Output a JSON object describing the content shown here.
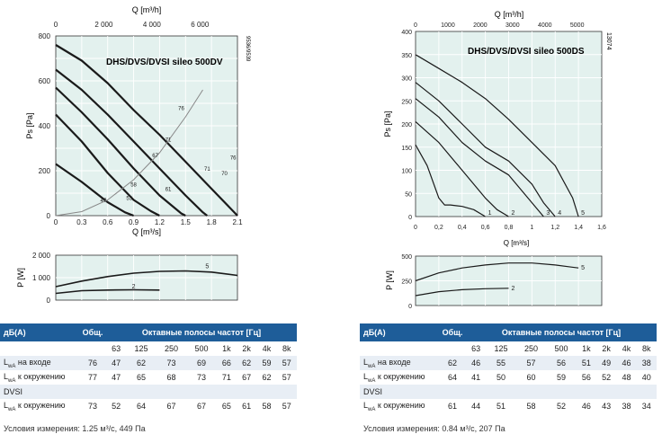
{
  "left": {
    "model_label": "DHS/DVS/DVSI sileo 500DV",
    "side_code": "9536/9539",
    "top_axis_label": "Q [m³/h]",
    "top_ticks": [
      "0",
      "2 000",
      "4 000",
      "6 000"
    ],
    "bottom_axis_label": "Q [m³/s]",
    "bottom_ticks": [
      "0",
      "0.3",
      "0.6",
      "0.9",
      "1.2",
      "1.5",
      "1.8",
      "2.1"
    ],
    "y_axis_label": "Ps [Pa]",
    "y_ticks": [
      "0",
      "200",
      "400",
      "600",
      "800"
    ],
    "power_y_label": "P [W]",
    "power_y_ticks": [
      "0",
      "1 000",
      "2 000"
    ]
  },
  "right": {
    "model_label": "DHS/DVS/DVSI sileo 500DS",
    "side_code": "13074",
    "top_axis_label": "Q [m³/h]",
    "top_ticks": [
      "0",
      "1000",
      "2000",
      "3000",
      "4000",
      "5000"
    ],
    "bottom_axis_label": "Q [m³/s]",
    "bottom_ticks": [
      "0",
      "0,2",
      "0,4",
      "0,6",
      "0,8",
      "1",
      "1,2",
      "1,4",
      "1,6"
    ],
    "y_axis_label": "Ps [Pa]",
    "y_ticks": [
      "0",
      "50",
      "100",
      "150",
      "200",
      "250",
      "300",
      "350",
      "400"
    ],
    "power_y_label": "P [W]",
    "power_y_ticks": [
      "0",
      "250",
      "500"
    ]
  },
  "chart_data": [
    {
      "type": "line",
      "id": "left-pressure",
      "title": "DHS/DVS/DVSI sileo 500DV",
      "xlabel": "Q [m³/s]",
      "ylabel": "Ps [Pa]",
      "xlim": [
        0,
        2.1
      ],
      "ylim": [
        0,
        800
      ],
      "series": [
        {
          "x": [
            0,
            0.3,
            0.6,
            0.8,
            0.9
          ],
          "y": [
            230,
            150,
            60,
            15,
            0
          ]
        },
        {
          "x": [
            0,
            0.3,
            0.6,
            0.9,
            1.1,
            1.2
          ],
          "y": [
            450,
            330,
            190,
            70,
            20,
            0
          ]
        },
        {
          "x": [
            0,
            0.3,
            0.6,
            0.9,
            1.2,
            1.45,
            1.5
          ],
          "y": [
            570,
            460,
            340,
            210,
            90,
            10,
            0
          ]
        },
        {
          "x": [
            0,
            0.3,
            0.6,
            0.9,
            1.2,
            1.5,
            1.7,
            1.75
          ],
          "y": [
            650,
            560,
            450,
            330,
            210,
            90,
            15,
            0
          ]
        },
        {
          "x": [
            0,
            0.3,
            0.6,
            0.9,
            1.2,
            1.5,
            1.8,
            2.0,
            2.1
          ],
          "y": [
            760,
            690,
            590,
            470,
            360,
            240,
            120,
            40,
            0
          ]
        }
      ],
      "system_curve": {
        "x": [
          0,
          0.3,
          0.6,
          0.9,
          1.2,
          1.5,
          1.7
        ],
        "y": [
          0,
          18,
          70,
          160,
          280,
          440,
          560
        ]
      },
      "annotations": [
        "47",
        "53",
        "58",
        "61",
        "67",
        "71",
        "70",
        "71",
        "76",
        "76"
      ]
    },
    {
      "type": "line",
      "id": "left-power",
      "ylabel": "P [W]",
      "xlim": [
        0,
        2.1
      ],
      "ylim": [
        0,
        2000
      ],
      "series": [
        {
          "name": "2",
          "x": [
            0,
            0.3,
            0.6,
            0.9,
            1.2
          ],
          "y": [
            300,
            420,
            450,
            460,
            450
          ]
        },
        {
          "name": "5",
          "x": [
            0,
            0.3,
            0.6,
            0.9,
            1.2,
            1.5,
            1.8,
            2.1
          ],
          "y": [
            600,
            850,
            1050,
            1200,
            1280,
            1300,
            1250,
            1100
          ]
        }
      ]
    },
    {
      "type": "line",
      "id": "right-pressure",
      "title": "DHS/DVS/DVSI sileo 500DS",
      "xlabel": "Q [m³/s]",
      "ylabel": "Ps [Pa]",
      "xlim": [
        0,
        1.6
      ],
      "ylim": [
        0,
        400
      ],
      "series": [
        {
          "name": "1",
          "x": [
            0,
            0.1,
            0.2,
            0.25,
            0.3,
            0.4,
            0.5,
            0.6
          ],
          "y": [
            155,
            110,
            40,
            25,
            25,
            22,
            15,
            0
          ]
        },
        {
          "name": "2",
          "x": [
            0,
            0.2,
            0.4,
            0.6,
            0.7,
            0.8
          ],
          "y": [
            205,
            160,
            100,
            40,
            15,
            0
          ]
        },
        {
          "name": "3",
          "x": [
            0,
            0.2,
            0.4,
            0.6,
            0.8,
            1.0,
            1.1
          ],
          "y": [
            255,
            215,
            160,
            120,
            90,
            30,
            0
          ]
        },
        {
          "name": "4",
          "x": [
            0,
            0.2,
            0.4,
            0.6,
            0.8,
            1.0,
            1.1,
            1.2
          ],
          "y": [
            290,
            250,
            200,
            150,
            120,
            70,
            30,
            0
          ]
        },
        {
          "name": "5",
          "x": [
            0,
            0.2,
            0.4,
            0.6,
            0.8,
            1.0,
            1.2,
            1.35,
            1.4
          ],
          "y": [
            350,
            320,
            290,
            255,
            210,
            160,
            110,
            40,
            0
          ]
        }
      ]
    },
    {
      "type": "line",
      "id": "right-power",
      "ylabel": "P [W]",
      "xlim": [
        0,
        1.6
      ],
      "ylim": [
        0,
        500
      ],
      "series": [
        {
          "name": "2",
          "x": [
            0,
            0.2,
            0.4,
            0.6,
            0.8
          ],
          "y": [
            100,
            140,
            160,
            170,
            175
          ]
        },
        {
          "name": "5",
          "x": [
            0,
            0.2,
            0.4,
            0.6,
            0.8,
            1.0,
            1.2,
            1.4
          ],
          "y": [
            250,
            330,
            380,
            410,
            430,
            430,
            410,
            380
          ]
        }
      ]
    },
    {
      "type": "table",
      "id": "left-noise",
      "header": {
        "unit": "дБ(A)",
        "total": "Общ.",
        "bands": "Октавные полосы частот [Гц]"
      },
      "freqs": [
        "63",
        "125",
        "250",
        "500",
        "1k",
        "2k",
        "4k",
        "8k"
      ],
      "rows": [
        {
          "label_main": "L",
          "label_sub": "wA",
          "label_rest": " на входе",
          "total": "76",
          "values": [
            "47",
            "62",
            "73",
            "69",
            "66",
            "62",
            "59",
            "57"
          ]
        },
        {
          "label_main": "L",
          "label_sub": "wA",
          "label_rest": " к окружению",
          "total": "77",
          "values": [
            "47",
            "65",
            "68",
            "73",
            "71",
            "67",
            "62",
            "57"
          ]
        }
      ],
      "section": "DVSI",
      "section_rows": [
        {
          "label_main": "L",
          "label_sub": "wA",
          "label_rest": " к окружению",
          "total": "73",
          "values": [
            "52",
            "64",
            "67",
            "67",
            "65",
            "61",
            "58",
            "57"
          ]
        }
      ],
      "condition": "Условия измерения: 1.25 м³/с, 449 Па"
    },
    {
      "type": "table",
      "id": "right-noise",
      "header": {
        "unit": "дБ(A)",
        "total": "Общ.",
        "bands": "Октавные полосы частот [Гц]"
      },
      "freqs": [
        "63",
        "125",
        "250",
        "500",
        "1k",
        "2k",
        "4k",
        "8k"
      ],
      "rows": [
        {
          "label_main": "L",
          "label_sub": "wA",
          "label_rest": " на входе",
          "total": "62",
          "values": [
            "46",
            "55",
            "57",
            "56",
            "51",
            "49",
            "46",
            "38"
          ]
        },
        {
          "label_main": "L",
          "label_sub": "wA",
          "label_rest": " к окружению",
          "total": "64",
          "values": [
            "41",
            "50",
            "60",
            "59",
            "56",
            "52",
            "48",
            "40"
          ]
        }
      ],
      "section": "DVSI",
      "section_rows": [
        {
          "label_main": "L",
          "label_sub": "wA",
          "label_rest": " к окружению",
          "total": "61",
          "values": [
            "44",
            "51",
            "58",
            "52",
            "46",
            "43",
            "38",
            "34"
          ]
        }
      ],
      "condition": "Условия измерения: 0.84 м³/с, 207 Па"
    }
  ]
}
